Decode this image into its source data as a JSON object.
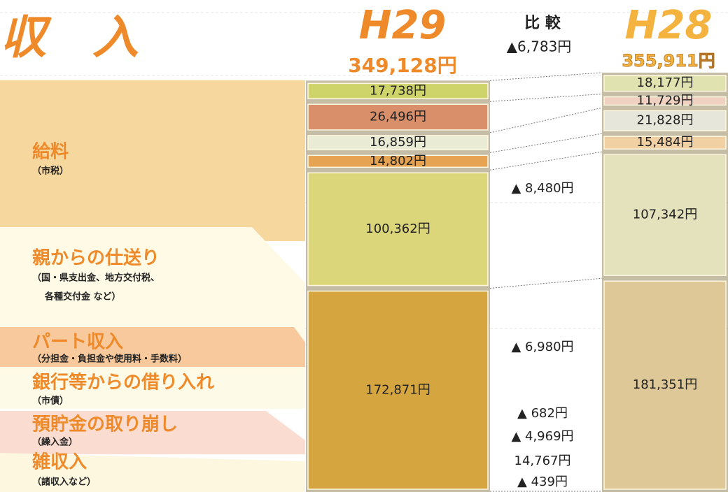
{
  "chart_data": {
    "type": "stacked_bar",
    "title": "収　入",
    "categories": [
      "H29",
      "H28"
    ],
    "totals": [
      349128,
      355911
    ],
    "total_labels": [
      "349,128円",
      "355,911円"
    ],
    "comparison_title": "比 較",
    "comparison_total": "▲6,783円",
    "ylim": [
      0,
      360000
    ],
    "series": [
      {
        "name": "給料",
        "note": [
          "（市税）"
        ],
        "values": [
          172871,
          181351
        ],
        "value_labels": [
          "172,871円",
          "181,351円"
        ],
        "colors": [
          "#d5a540",
          "#dfc898"
        ],
        "difference": "▲ 8,480円"
      },
      {
        "name": "親からの仕送り",
        "note": [
          "（国・県支出金、地方交付税、",
          "各種交付金 など）"
        ],
        "values": [
          100362,
          107342
        ],
        "value_labels": [
          "100,362円",
          "107,342円"
        ],
        "colors": [
          "#dcd67a",
          "#e4e1bd"
        ],
        "difference": "▲ 6,980円"
      },
      {
        "name": "パート収入",
        "note": [
          "（分担金・負担金や使用料・手数料）"
        ],
        "values": [
          14802,
          15484
        ],
        "value_labels": [
          "14,802円",
          "15,484円"
        ],
        "colors": [
          "#e6a352",
          "#f1d0a4"
        ],
        "difference": "▲ 682円"
      },
      {
        "name": "銀行等からの借り入れ",
        "note": [
          "（市債）"
        ],
        "values": [
          16859,
          21828
        ],
        "value_labels": [
          "16,859円",
          "21,828円"
        ],
        "colors": [
          "#e9ebd4",
          "#e6e7da"
        ],
        "difference": "▲ 4,969円"
      },
      {
        "name": "預貯金の取り崩し",
        "note": [
          "（繰入金）"
        ],
        "values": [
          26496,
          11729
        ],
        "value_labels": [
          "26,496円",
          "11,729円"
        ],
        "colors": [
          "#d98f6a",
          "#efd0c1"
        ],
        "difference": "14,767円"
      },
      {
        "name": "雑収入",
        "note": [
          "（諸収入など）"
        ],
        "values": [
          17738,
          18177
        ],
        "value_labels": [
          "17,738円",
          "18,177円"
        ],
        "colors": [
          "#cfd46a",
          "#e0e2af"
        ],
        "difference": "▲ 439円"
      }
    ]
  }
}
